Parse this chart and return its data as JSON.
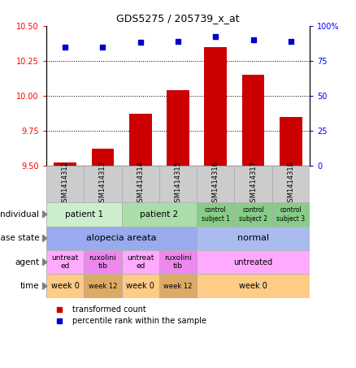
{
  "title": "GDS5275 / 205739_x_at",
  "samples": [
    "GSM1414312",
    "GSM1414313",
    "GSM1414314",
    "GSM1414315",
    "GSM1414316",
    "GSM1414317",
    "GSM1414318"
  ],
  "transformed_count": [
    9.52,
    9.62,
    9.87,
    10.04,
    10.35,
    10.15,
    9.85
  ],
  "percentile_rank": [
    85,
    85,
    88,
    89,
    92,
    90,
    89
  ],
  "ylim_left": [
    9.5,
    10.5
  ],
  "ylim_right": [
    0,
    100
  ],
  "yticks_left": [
    9.5,
    9.75,
    10.0,
    10.25,
    10.5
  ],
  "yticks_right": [
    0,
    25,
    50,
    75,
    100
  ],
  "bar_color": "#cc0000",
  "dot_color": "#0000cc",
  "bar_bottom": 9.5,
  "sample_box_color": "#cccccc",
  "annotation_rows": [
    {
      "label": "individual",
      "cells": [
        {
          "text": "patient 1",
          "span": 2,
          "color": "#cceecc",
          "fontsize": 7.5
        },
        {
          "text": "patient 2",
          "span": 2,
          "color": "#aaddaa",
          "fontsize": 7.5
        },
        {
          "text": "control\nsubject 1",
          "span": 1,
          "color": "#88cc88",
          "fontsize": 5.5
        },
        {
          "text": "control\nsubject 2",
          "span": 1,
          "color": "#88cc88",
          "fontsize": 5.5
        },
        {
          "text": "control\nsubject 3",
          "span": 1,
          "color": "#88cc88",
          "fontsize": 5.5
        }
      ]
    },
    {
      "label": "disease state",
      "cells": [
        {
          "text": "alopecia areata",
          "span": 4,
          "color": "#99aaee",
          "fontsize": 8
        },
        {
          "text": "normal",
          "span": 3,
          "color": "#aabbee",
          "fontsize": 8
        }
      ]
    },
    {
      "label": "agent",
      "cells": [
        {
          "text": "untreat\ned",
          "span": 1,
          "color": "#ffaaff",
          "fontsize": 6.5
        },
        {
          "text": "ruxolini\ntib",
          "span": 1,
          "color": "#ee88ee",
          "fontsize": 6.5
        },
        {
          "text": "untreat\ned",
          "span": 1,
          "color": "#ffaaff",
          "fontsize": 6.5
        },
        {
          "text": "ruxolini\ntib",
          "span": 1,
          "color": "#ee88ee",
          "fontsize": 6.5
        },
        {
          "text": "untreated",
          "span": 3,
          "color": "#ffaaff",
          "fontsize": 7
        }
      ]
    },
    {
      "label": "time",
      "cells": [
        {
          "text": "week 0",
          "span": 1,
          "color": "#ffcc88",
          "fontsize": 7
        },
        {
          "text": "week 12",
          "span": 1,
          "color": "#ddaa66",
          "fontsize": 6
        },
        {
          "text": "week 0",
          "span": 1,
          "color": "#ffcc88",
          "fontsize": 7
        },
        {
          "text": "week 12",
          "span": 1,
          "color": "#ddaa66",
          "fontsize": 6
        },
        {
          "text": "week 0",
          "span": 3,
          "color": "#ffcc88",
          "fontsize": 7
        }
      ]
    }
  ]
}
